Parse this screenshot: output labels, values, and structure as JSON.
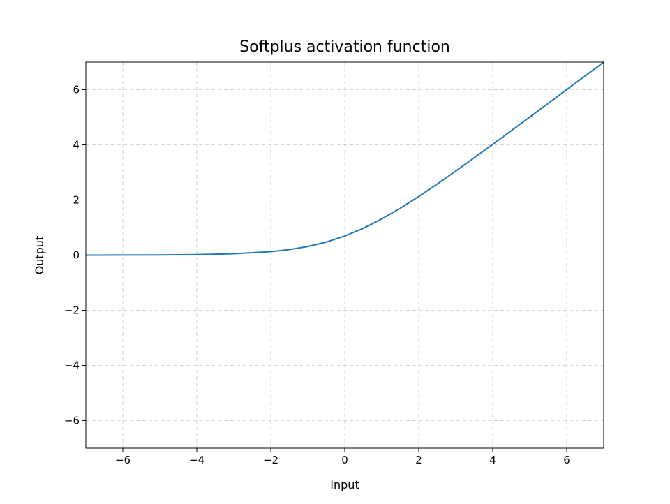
{
  "chart_data": {
    "type": "line",
    "title": "Softplus activation function",
    "xlabel": "Input",
    "ylabel": "Output",
    "xlim": [
      -7,
      7
    ],
    "ylim": [
      -7,
      7
    ],
    "x_ticks": [
      -6,
      -4,
      -2,
      0,
      2,
      4,
      6
    ],
    "y_ticks": [
      -6,
      -4,
      -2,
      0,
      2,
      4,
      6
    ],
    "x_tick_labels": [
      "−6",
      "−4",
      "−2",
      "0",
      "2",
      "4",
      "6"
    ],
    "y_tick_labels": [
      "−6",
      "−4",
      "−2",
      "0",
      "2",
      "4",
      "6"
    ],
    "grid": true,
    "series": [
      {
        "color": "#1f77b4",
        "x": [
          -7,
          -6,
          -5,
          -4,
          -3,
          -2,
          -1.5,
          -1,
          -0.5,
          0,
          0.5,
          1,
          1.5,
          2,
          2.5,
          3,
          4,
          5,
          6,
          7
        ],
        "y": [
          0.001,
          0.002,
          0.007,
          0.018,
          0.049,
          0.127,
          0.201,
          0.313,
          0.474,
          0.693,
          0.974,
          1.313,
          1.701,
          2.127,
          2.579,
          3.049,
          4.018,
          5.007,
          6.002,
          7.001
        ]
      }
    ]
  }
}
